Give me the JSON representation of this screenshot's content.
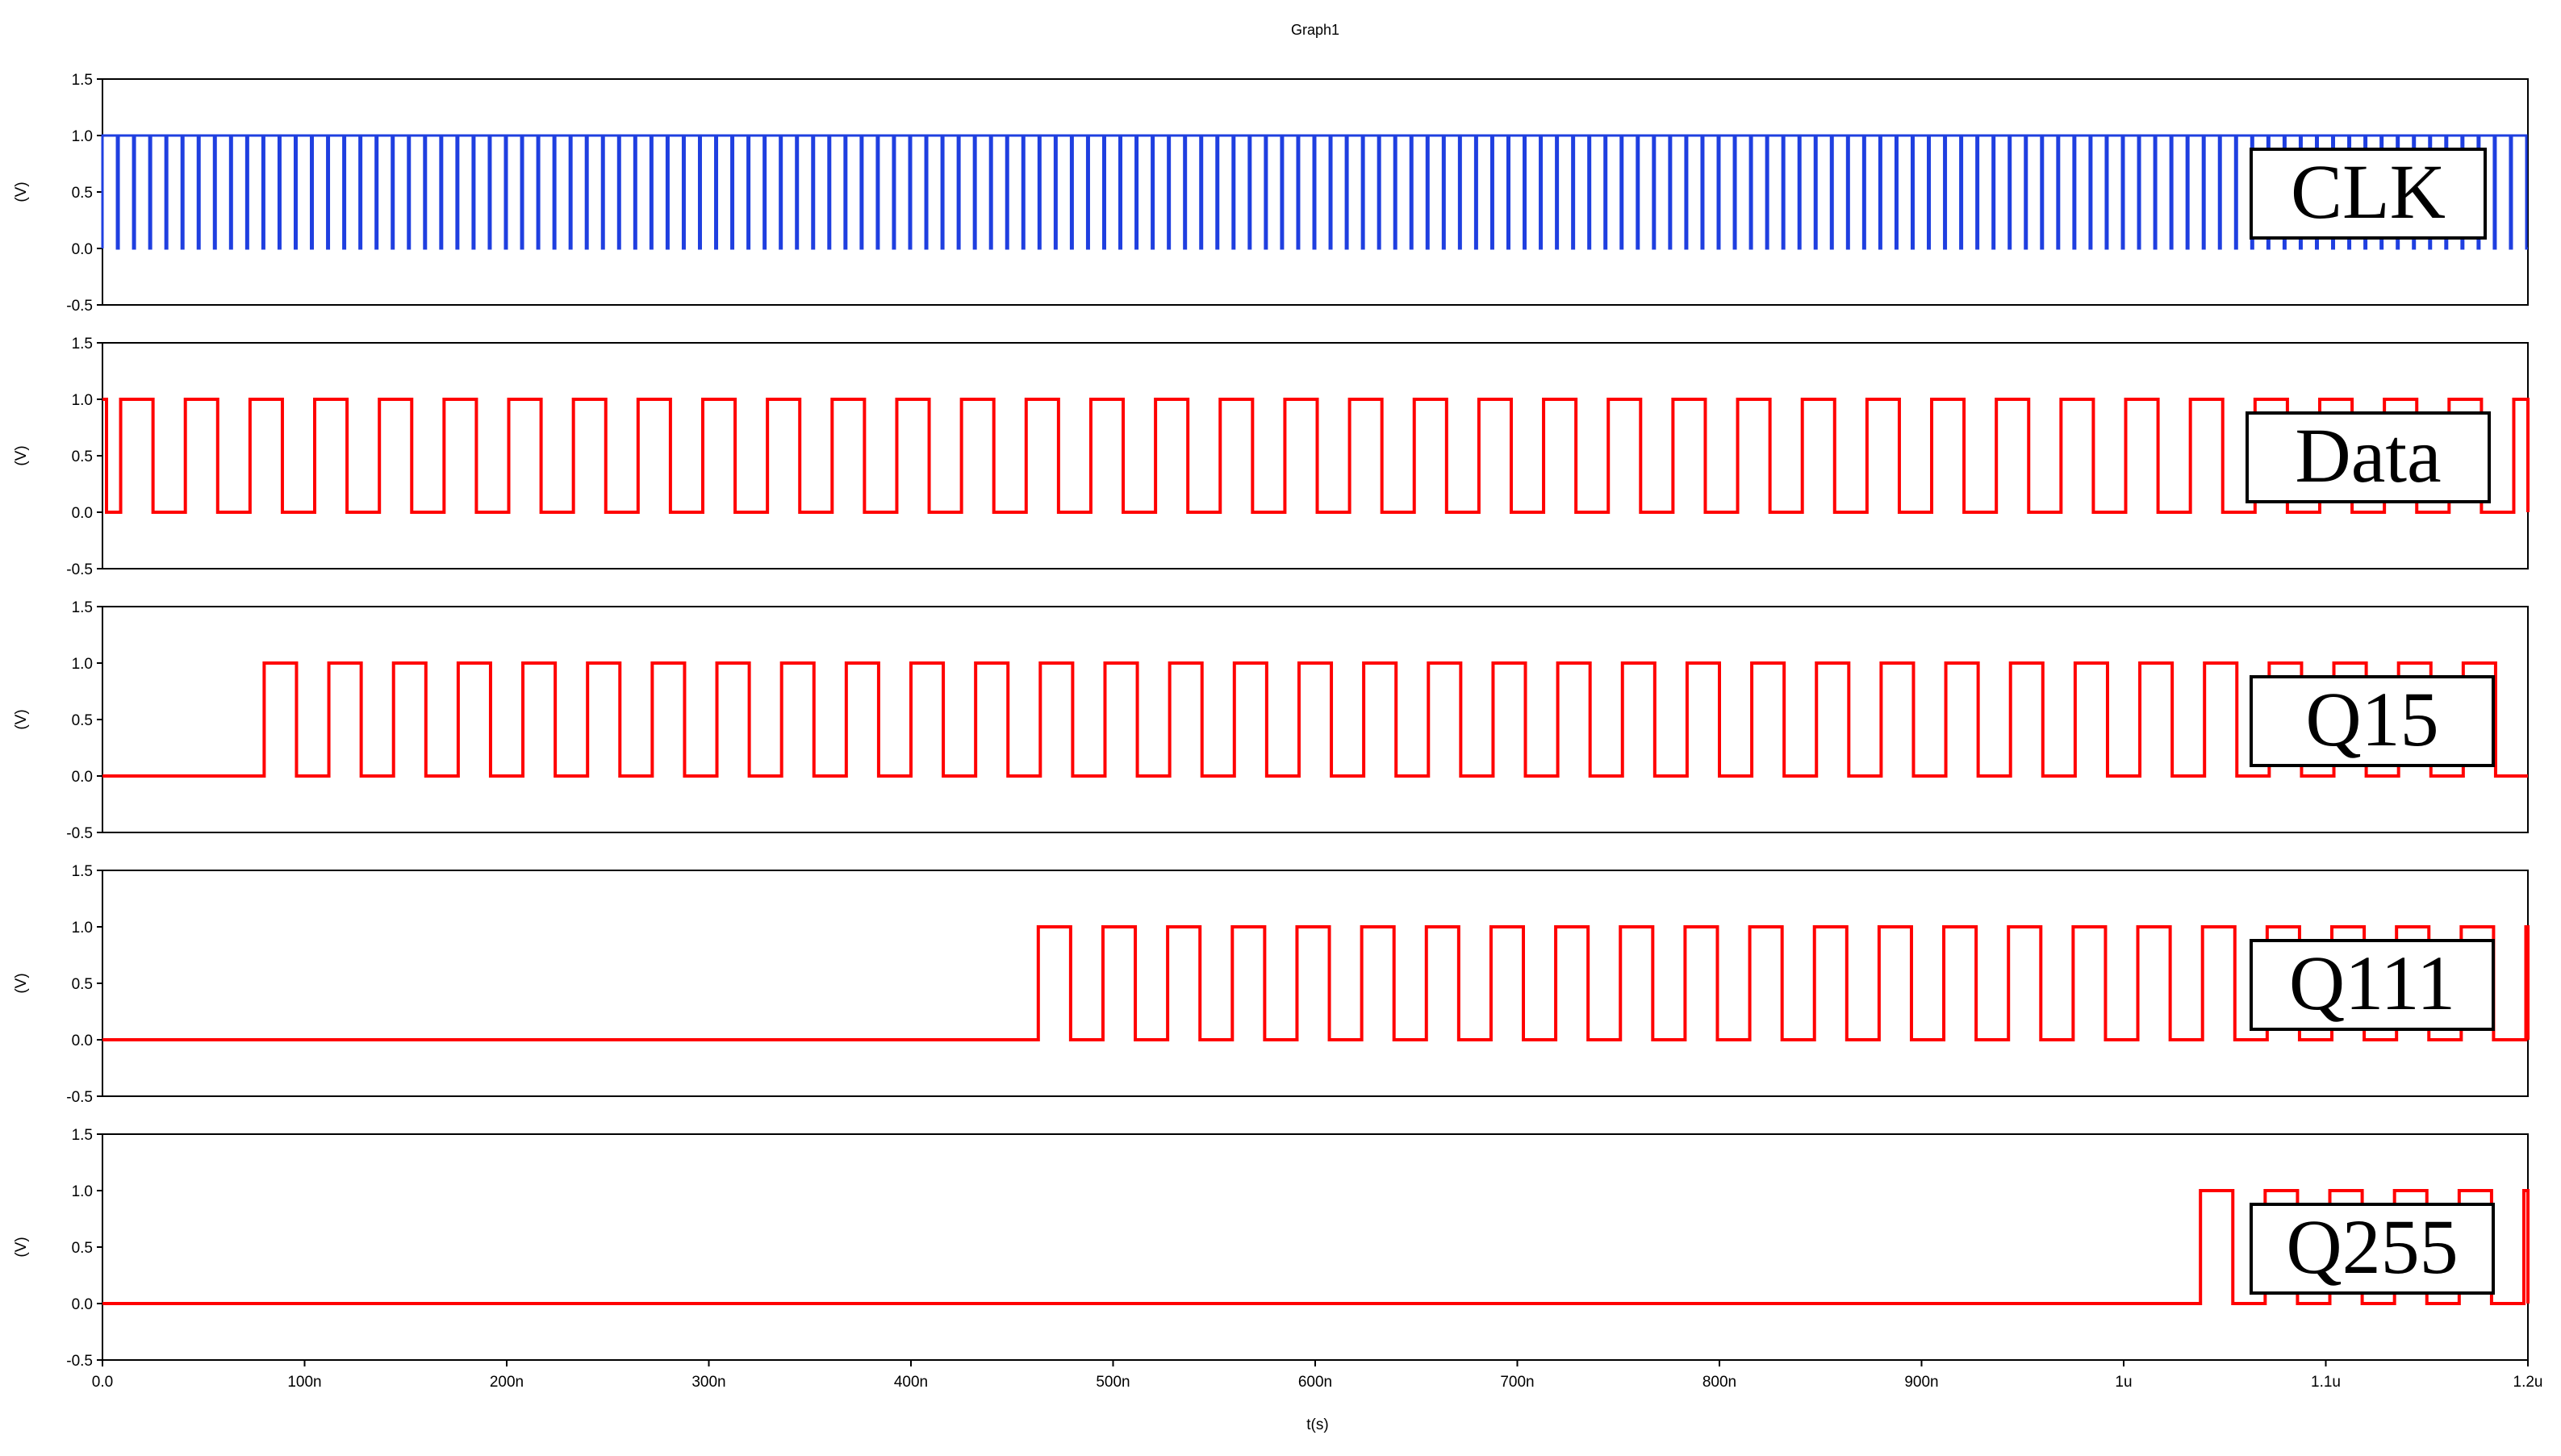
{
  "chart_data": {
    "type": "line",
    "title": "Graph1",
    "xlabel": "t(s)",
    "ylabel": "(V)",
    "xlim": [
      0,
      1200
    ],
    "ylim": [
      -0.5,
      1.5
    ],
    "x_unit": "ns",
    "x_ticks": [
      "0.0",
      "100n",
      "200n",
      "300n",
      "400n",
      "500n",
      "600n",
      "700n",
      "800n",
      "900n",
      "1u",
      "1.1u",
      "1.2u"
    ],
    "y_ticks": [
      "-0.5",
      "0.0",
      "0.5",
      "1.0",
      "1.5"
    ],
    "grid": false,
    "series": [
      {
        "name": "CLK",
        "color": "#1f3fe0",
        "low": 0,
        "high": 1,
        "start_ns": 0,
        "period_ns": 8,
        "duty": 0.9,
        "end_ns": 1200
      },
      {
        "name": "Data",
        "color": "#ff0000",
        "low": 0,
        "high": 1,
        "start_ns": 0,
        "period_ns": 32,
        "duty": 0.5,
        "end_ns": 1200,
        "first_high_ns": 2
      },
      {
        "name": "Q15",
        "color": "#ff0000",
        "low": 0,
        "high": 1,
        "start_ns": 80,
        "period_ns": 32,
        "duty": 0.5,
        "end_ns": 1200
      },
      {
        "name": "Q111",
        "color": "#ff0000",
        "low": 0,
        "high": 1,
        "start_ns": 463,
        "period_ns": 32,
        "duty": 0.5,
        "end_ns": 1200
      },
      {
        "name": "Q255",
        "color": "#ff0000",
        "low": 0,
        "high": 1,
        "start_ns": 1038,
        "period_ns": 32,
        "duty": 0.5,
        "end_ns": 1200
      }
    ]
  }
}
